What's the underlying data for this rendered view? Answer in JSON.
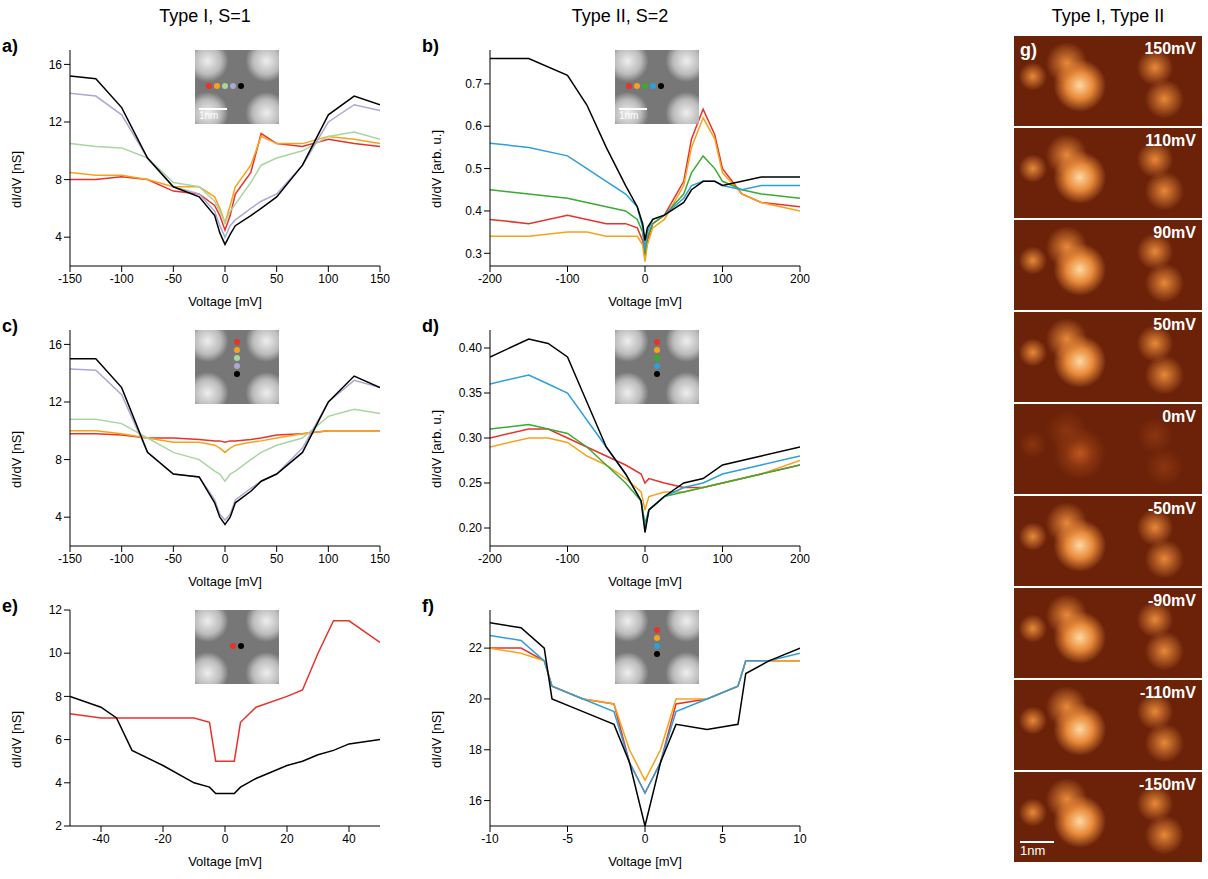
{
  "column_titles": [
    "Type I, S=1",
    "Type II, S=2",
    "Type I, Type II"
  ],
  "chart_data": [
    {
      "panel": "a)",
      "type": "line",
      "x_label": "Voltage [mV]",
      "y_label": "dI/dV [nS]",
      "inset_scale": "1nm",
      "xlim": [
        -150,
        150
      ],
      "xticks": [
        -150,
        -100,
        -50,
        0,
        50,
        100,
        150
      ],
      "ylim": [
        2,
        17
      ],
      "yticks": [
        4,
        8,
        12,
        16
      ],
      "x": [
        -150,
        -125,
        -100,
        -75,
        -50,
        -25,
        -10,
        -5,
        0,
        5,
        10,
        25,
        35,
        50,
        75,
        100,
        125,
        150
      ],
      "series": [
        {
          "color": "#e8322a",
          "values": [
            8,
            8,
            8.2,
            8,
            7.2,
            7,
            6.2,
            5.5,
            4.5,
            5.5,
            7,
            8.5,
            11.2,
            10.5,
            10.3,
            10.8,
            10.5,
            10.3
          ]
        },
        {
          "color": "#f7a21b",
          "values": [
            8.5,
            8.3,
            8.3,
            8,
            7.5,
            7.5,
            6.8,
            6,
            5,
            6.2,
            7.5,
            9,
            11,
            10.5,
            10.5,
            11,
            10.8,
            10.5
          ]
        },
        {
          "color": "#a9d6a0",
          "values": [
            10.5,
            10.3,
            10.2,
            9.5,
            7.8,
            7.5,
            6.5,
            5.8,
            5,
            5.8,
            6.3,
            7.8,
            9,
            9.5,
            10,
            11,
            11.3,
            10.8
          ]
        },
        {
          "color": "#a9a9d4",
          "values": [
            14,
            13.8,
            12.5,
            9.5,
            7.5,
            7,
            5.8,
            4.8,
            4,
            4.8,
            5.2,
            6,
            6.5,
            7,
            9,
            12,
            13.2,
            12.8
          ]
        },
        {
          "color": "#000000",
          "values": [
            15.2,
            15,
            13,
            9.5,
            7.5,
            6.8,
            5.5,
            4.3,
            3.5,
            4.2,
            4.8,
            5.5,
            6,
            6.8,
            9,
            12.5,
            13.8,
            13.2
          ]
        }
      ]
    },
    {
      "panel": "b)",
      "type": "line",
      "x_label": "Voltage [mV]",
      "y_label": "dI/dV [arb. u.]",
      "inset_scale": "1nm",
      "xlim": [
        -200,
        200
      ],
      "xticks": [
        -200,
        -100,
        0,
        100,
        200
      ],
      "ylim": [
        0.27,
        0.78
      ],
      "yticks": [
        0.3,
        0.4,
        0.5,
        0.6,
        0.7
      ],
      "x": [
        -200,
        -150,
        -100,
        -75,
        -50,
        -25,
        -10,
        -3,
        0,
        3,
        10,
        25,
        50,
        60,
        75,
        90,
        100,
        125,
        150,
        200
      ],
      "series": [
        {
          "color": "#e8322a",
          "values": [
            0.38,
            0.37,
            0.39,
            0.38,
            0.37,
            0.37,
            0.36,
            0.33,
            0.29,
            0.33,
            0.37,
            0.39,
            0.47,
            0.57,
            0.64,
            0.58,
            0.5,
            0.44,
            0.42,
            0.41
          ]
        },
        {
          "color": "#f7a21b",
          "values": [
            0.34,
            0.34,
            0.35,
            0.35,
            0.34,
            0.34,
            0.34,
            0.32,
            0.28,
            0.32,
            0.36,
            0.38,
            0.46,
            0.55,
            0.62,
            0.57,
            0.49,
            0.44,
            0.42,
            0.4
          ]
        },
        {
          "color": "#3aaa35",
          "values": [
            0.45,
            0.44,
            0.43,
            0.42,
            0.41,
            0.4,
            0.38,
            0.35,
            0.3,
            0.34,
            0.37,
            0.39,
            0.44,
            0.49,
            0.53,
            0.5,
            0.47,
            0.45,
            0.44,
            0.43
          ]
        },
        {
          "color": "#2e9fd8",
          "values": [
            0.56,
            0.55,
            0.53,
            0.5,
            0.47,
            0.44,
            0.41,
            0.36,
            0.31,
            0.35,
            0.38,
            0.39,
            0.43,
            0.46,
            0.47,
            0.47,
            0.46,
            0.45,
            0.46,
            0.46
          ]
        },
        {
          "color": "#000000",
          "values": [
            0.76,
            0.76,
            0.72,
            0.65,
            0.55,
            0.46,
            0.41,
            0.37,
            0.33,
            0.36,
            0.38,
            0.39,
            0.42,
            0.45,
            0.47,
            0.47,
            0.46,
            0.47,
            0.48,
            0.48
          ]
        }
      ]
    },
    {
      "panel": "c)",
      "type": "line",
      "x_label": "Voltage [mV]",
      "y_label": "dI/dV [nS]",
      "xlim": [
        -150,
        150
      ],
      "xticks": [
        -150,
        -100,
        -50,
        0,
        50,
        100,
        150
      ],
      "ylim": [
        2,
        17
      ],
      "yticks": [
        4,
        8,
        12,
        16
      ],
      "x": [
        -150,
        -125,
        -100,
        -75,
        -50,
        -25,
        -10,
        -5,
        0,
        5,
        10,
        25,
        35,
        50,
        75,
        100,
        125,
        150
      ],
      "series": [
        {
          "color": "#e8322a",
          "values": [
            9.8,
            9.8,
            9.7,
            9.5,
            9.5,
            9.4,
            9.3,
            9.3,
            9.2,
            9.3,
            9.3,
            9.4,
            9.5,
            9.7,
            9.8,
            10,
            10,
            10
          ]
        },
        {
          "color": "#f7a21b",
          "values": [
            10,
            10,
            9.8,
            9.5,
            9.2,
            9.2,
            9,
            8.8,
            8.5,
            8.8,
            9,
            9.2,
            9.3,
            9.5,
            9.8,
            10,
            10,
            10
          ]
        },
        {
          "color": "#a9d6a0",
          "values": [
            10.8,
            10.8,
            10.5,
            9.5,
            8.5,
            8,
            7.2,
            7,
            6.5,
            7,
            7.2,
            8,
            8.5,
            9,
            9.5,
            11,
            11.5,
            11.2
          ]
        },
        {
          "color": "#a9a9d4",
          "values": [
            14.3,
            14.2,
            12.5,
            8.5,
            7,
            6.8,
            5.2,
            4.2,
            3.8,
            4.2,
            5.2,
            6,
            6.5,
            7,
            8.8,
            12,
            13.5,
            13
          ]
        },
        {
          "color": "#000000",
          "values": [
            15,
            15,
            13,
            8.5,
            7,
            6.8,
            5,
            4,
            3.5,
            4,
            5,
            5.8,
            6.5,
            7,
            8.5,
            12,
            13.8,
            13
          ]
        }
      ]
    },
    {
      "panel": "d)",
      "type": "line",
      "x_label": "Voltage [mV]",
      "y_label": "dI/dV [arb. u.]",
      "xlim": [
        -200,
        200
      ],
      "xticks": [
        -200,
        -100,
        0,
        100,
        200
      ],
      "ylim": [
        0.18,
        0.42
      ],
      "yticks": [
        {
          "value": 0.2,
          "label": "0.20"
        },
        {
          "value": 0.25,
          "label": "0.25"
        },
        {
          "value": 0.3,
          "label": "0.30"
        },
        {
          "value": 0.35,
          "label": "0.35"
        },
        {
          "value": 0.4,
          "label": "0.40"
        }
      ],
      "x": [
        -200,
        -150,
        -125,
        -100,
        -75,
        -50,
        -25,
        -5,
        0,
        5,
        25,
        50,
        75,
        100,
        150,
        200
      ],
      "series": [
        {
          "color": "#e8322a",
          "values": [
            0.3,
            0.31,
            0.31,
            0.3,
            0.29,
            0.28,
            0.27,
            0.26,
            0.25,
            0.255,
            0.25,
            0.245,
            0.245,
            0.25,
            0.26,
            0.27
          ]
        },
        {
          "color": "#f7a21b",
          "values": [
            0.29,
            0.3,
            0.3,
            0.295,
            0.28,
            0.27,
            0.255,
            0.24,
            0.22,
            0.235,
            0.24,
            0.24,
            0.245,
            0.25,
            0.26,
            0.275
          ]
        },
        {
          "color": "#3aaa35",
          "values": [
            0.31,
            0.315,
            0.31,
            0.305,
            0.29,
            0.27,
            0.25,
            0.23,
            0.205,
            0.22,
            0.235,
            0.24,
            0.245,
            0.25,
            0.26,
            0.27
          ]
        },
        {
          "color": "#2e9fd8",
          "values": [
            0.36,
            0.37,
            0.36,
            0.35,
            0.32,
            0.29,
            0.26,
            0.23,
            0.2,
            0.22,
            0.235,
            0.245,
            0.25,
            0.26,
            0.27,
            0.28
          ]
        },
        {
          "color": "#000000",
          "values": [
            0.39,
            0.41,
            0.405,
            0.39,
            0.34,
            0.29,
            0.26,
            0.23,
            0.195,
            0.22,
            0.235,
            0.25,
            0.255,
            0.27,
            0.28,
            0.29
          ]
        }
      ]
    },
    {
      "panel": "e)",
      "type": "line",
      "x_label": "Voltage [mV]",
      "y_label": "dI/dV [nS]",
      "xlim": [
        -50,
        50
      ],
      "xticks": [
        -40,
        -20,
        0,
        20,
        40
      ],
      "ylim": [
        2,
        12
      ],
      "yticks": [
        2,
        4,
        6,
        8,
        10,
        12
      ],
      "x": [
        -50,
        -40,
        -35,
        -30,
        -20,
        -10,
        -5,
        -3,
        0,
        3,
        5,
        10,
        20,
        25,
        30,
        35,
        40,
        50
      ],
      "series": [
        {
          "color": "#e8322a",
          "values": [
            7.2,
            7,
            7,
            7,
            7,
            7,
            6.8,
            5,
            5,
            5,
            6.8,
            7.5,
            8,
            8.3,
            10,
            11.5,
            11.5,
            10.5
          ]
        },
        {
          "color": "#000000",
          "values": [
            8,
            7.5,
            7,
            5.5,
            4.8,
            4,
            3.8,
            3.5,
            3.5,
            3.5,
            3.8,
            4.2,
            4.8,
            5,
            5.3,
            5.5,
            5.8,
            6
          ]
        }
      ]
    },
    {
      "panel": "f)",
      "type": "line",
      "x_label": "Voltage [mV]",
      "y_label": "dI/dV [nS]",
      "xlim": [
        -10,
        10
      ],
      "xticks": [
        -10,
        -5,
        0,
        5,
        10
      ],
      "ylim": [
        15,
        23.5
      ],
      "yticks": [
        16,
        18,
        20,
        22
      ],
      "x": [
        -10,
        -8,
        -6.5,
        -6,
        -4,
        -2,
        -1,
        0,
        1,
        2,
        4,
        6,
        6.5,
        8,
        10
      ],
      "series": [
        {
          "color": "#e8322a",
          "values": [
            22,
            22,
            21.5,
            20.5,
            20,
            19.8,
            17.5,
            16.3,
            17.5,
            19.8,
            20,
            20.5,
            21.5,
            21.5,
            21.5
          ]
        },
        {
          "color": "#f7a21b",
          "values": [
            22,
            21.8,
            21.5,
            20.5,
            20,
            19.8,
            18,
            16.8,
            18,
            20,
            20,
            20.5,
            21.5,
            21.5,
            21.5
          ]
        },
        {
          "color": "#2e9fd8",
          "values": [
            22.5,
            22.3,
            21.5,
            20.5,
            20,
            19.5,
            17.5,
            16.3,
            17.5,
            19.5,
            20,
            20.5,
            21.5,
            21.5,
            21.8
          ]
        },
        {
          "color": "#000000",
          "values": [
            23,
            22.8,
            22,
            20,
            19.5,
            19,
            17.5,
            15,
            17.5,
            19,
            18.8,
            19,
            21,
            21.5,
            22
          ]
        }
      ]
    }
  ],
  "image_panel": {
    "panel": "g)",
    "scale": "1nm",
    "labels": [
      "150mV",
      "110mV",
      "90mV",
      "50mV",
      "0mV",
      "-50mV",
      "-90mV",
      "-110mV",
      "-150mV"
    ]
  }
}
